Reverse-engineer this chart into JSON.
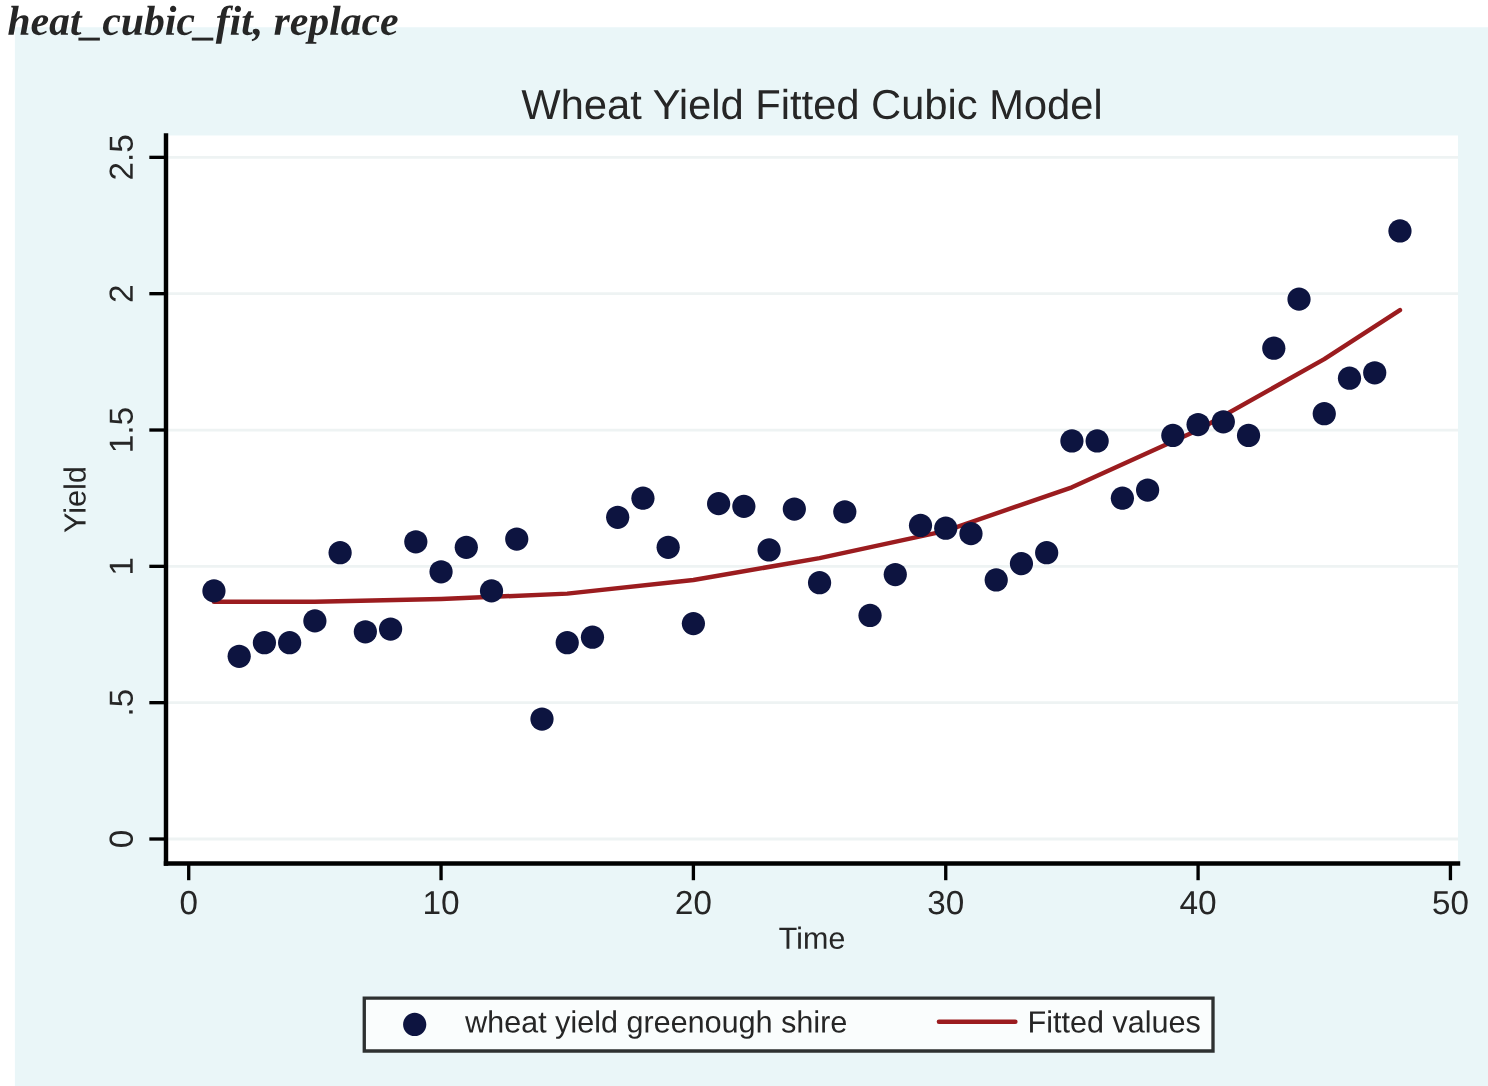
{
  "chart_data": {
    "type": "scatter",
    "title": "Wheat Yield Fitted Cubic Model",
    "xlabel": "Time",
    "ylabel": "Yield",
    "annotations": [
      "heat_cubic_fit, replace"
    ],
    "series": [
      {
        "name": "wheat yield greenough shire",
        "color": "#0d1440",
        "marker": "circle",
        "x": [
          1,
          2,
          3,
          4,
          5,
          6,
          7,
          8,
          9,
          10,
          11,
          12,
          13,
          14,
          15,
          16,
          17,
          18,
          19,
          20,
          21,
          22,
          23,
          24,
          25,
          26,
          27,
          28,
          29,
          30,
          31,
          32,
          33,
          34,
          35,
          36,
          37,
          38,
          39,
          40,
          41,
          42,
          43,
          44,
          45,
          46,
          47,
          48
        ],
        "values": [
          0.91,
          0.67,
          0.72,
          0.72,
          0.8,
          1.05,
          0.76,
          0.77,
          1.09,
          0.98,
          1.07,
          0.91,
          1.1,
          0.44,
          0.72,
          0.74,
          1.18,
          1.25,
          1.07,
          0.79,
          1.23,
          1.22,
          1.06,
          1.21,
          0.94,
          1.2,
          0.82,
          0.97,
          1.15,
          1.14,
          1.12,
          0.95,
          1.01,
          1.05,
          1.46,
          1.46,
          1.25,
          1.28,
          1.48,
          1.52,
          1.53,
          1.48,
          1.8,
          1.98,
          1.56,
          1.69,
          1.71,
          2.23
        ]
      },
      {
        "name": "Fitted values",
        "type": "line",
        "color": "#9b1c1f",
        "marker": "none",
        "line_style": "solid",
        "x": [
          1,
          5,
          10,
          15,
          20,
          25,
          30,
          35,
          40,
          45,
          48
        ],
        "values": [
          0.87,
          0.87,
          0.88,
          0.9,
          0.95,
          1.03,
          1.13,
          1.29,
          1.5,
          1.76,
          1.94
        ]
      }
    ],
    "xlim": [
      -0.9,
      50.3
    ],
    "xticks": [
      0,
      10,
      20,
      30,
      40,
      50
    ],
    "ylim": [
      -0.09,
      2.58
    ],
    "yticks": [
      0,
      {
        "value": 0.5,
        "label": ".5"
      },
      1,
      1.5,
      2,
      2.5
    ],
    "grid": "y",
    "legend": "bottom"
  }
}
